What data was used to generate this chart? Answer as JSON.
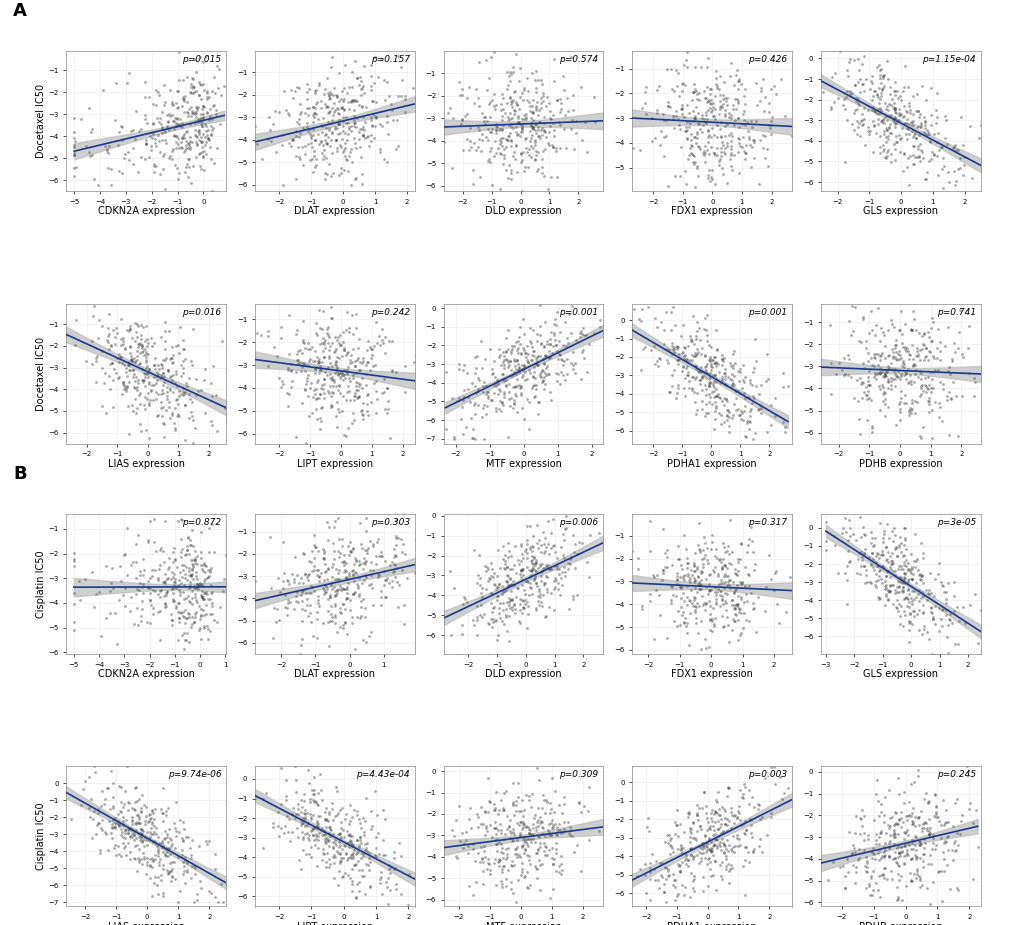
{
  "panel_A_row1": {
    "genes": [
      "CDKN2A",
      "DLAT",
      "DLD",
      "FDX1",
      "GLS"
    ],
    "pvalues": [
      "p=0.015",
      "p=0.157",
      "p=0.574",
      "p=0.426",
      "p=1.15e-04"
    ],
    "slopes": [
      0.08,
      0.1,
      0.02,
      -0.03,
      -0.2
    ],
    "x_skew": [
      3.0,
      -0.5,
      0.0,
      0.0,
      -0.5
    ],
    "ylabel": "Docetaxel IC50"
  },
  "panel_A_row2": {
    "genes": [
      "LIAS",
      "LIPT",
      "MTF",
      "PDHA1",
      "PDHB"
    ],
    "pvalues": [
      "p=0.016",
      "p=0.242",
      "p=0.001",
      "p=0.001",
      "p=0.741"
    ],
    "slopes": [
      -0.14,
      -0.04,
      0.18,
      -0.22,
      0.02
    ],
    "x_skew": [
      0.0,
      -0.5,
      0.0,
      0.0,
      0.0
    ],
    "ylabel": "Docetaxel IC50"
  },
  "panel_B_row1": {
    "genes": [
      "CDKN2A",
      "DLAT",
      "DLD",
      "FDX1",
      "GLS"
    ],
    "pvalues": [
      "p=0.872",
      "p=0.303",
      "p=0.006",
      "p=0.317",
      "p=3e-05"
    ],
    "slopes": [
      0.005,
      0.08,
      0.16,
      -0.05,
      -0.25
    ],
    "x_skew": [
      3.0,
      -0.5,
      0.0,
      0.0,
      -0.5
    ],
    "ylabel": "Cisplatin IC50"
  },
  "panel_B_row2": {
    "genes": [
      "LIAS",
      "LIPT",
      "MTF",
      "PDHA1",
      "PDHB"
    ],
    "pvalues": [
      "p=9.74e-06",
      "p=4.43e-04",
      "p=0.309",
      "p=0.003",
      "p=0.245"
    ],
    "slopes": [
      -0.28,
      -0.22,
      0.05,
      0.2,
      0.07
    ],
    "x_skew": [
      0.0,
      -0.5,
      0.0,
      0.0,
      0.0
    ],
    "ylabel": "Cisplatin IC50"
  },
  "scatter_color": "#444444",
  "line_color": "#1a3a8c",
  "ci_color": "#bbbbbb",
  "kde_top_color": "#c96b5e",
  "kde_right_color": "#5b90b0",
  "background_color": "#ffffff",
  "n_points": 350,
  "alpha": 0.45,
  "point_size": 4
}
